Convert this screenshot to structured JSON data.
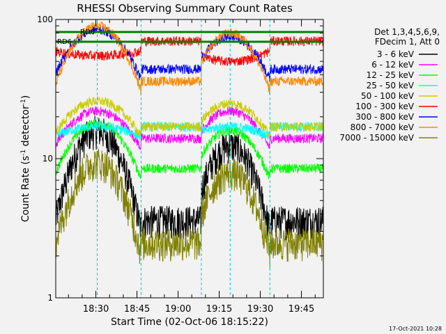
{
  "chart_data": {
    "type": "line",
    "title": "RHESSI Observing Summary Count Rates",
    "xlabel": "Start Time (02-Oct-06 18:15:22)",
    "ylabel": "Count Rate (s⁻¹ detector⁻¹)",
    "ylabel_main": "Count Rate (s",
    "ylabel_sup1": "-1",
    "ylabel_mid": " detector",
    "ylabel_sup2": "-1",
    "ylabel_end": ")",
    "yscale": "log",
    "ylim": [
      1,
      100
    ],
    "xlim": [
      "18:15:22",
      "19:53:00"
    ],
    "x_ticks": [
      "18:30",
      "18:45",
      "19:00",
      "19:15",
      "19:30",
      "19:45"
    ],
    "y_ticks": [
      "1",
      "10",
      "100"
    ],
    "legend_header": [
      "Det 1,3,4,5,6,9,",
      "FDecim 1, Att 0"
    ],
    "legend_position": "right",
    "flags": [
      {
        "label": "RD6",
        "color": "#008000"
      },
      {
        "label": "RD6",
        "color": "#008000"
      }
    ],
    "timestamp": "17-Oct-2021 10:28",
    "day_intervals": [
      [
        "18:15:22",
        "18:46:30"
      ],
      [
        "19:08:30",
        "19:33:30"
      ]
    ],
    "day_peaks": [
      "18:30:30",
      "19:19:00"
    ],
    "series": [
      {
        "name": "3 - 6 keV",
        "color": "#000000",
        "night": 3.6,
        "peak": [
          16,
          12.5
        ]
      },
      {
        "name": "6 - 12 keV",
        "color": "#ff00ff",
        "night": 14,
        "peak": [
          22,
          22
        ]
      },
      {
        "name": "12 - 25 keV",
        "color": "#00ff00",
        "night": 8.5,
        "peak": [
          18,
          16
        ]
      },
      {
        "name": "25 - 50 keV",
        "color": "#00ffff",
        "night": 17,
        "peak": [
          17,
          17
        ]
      },
      {
        "name": "50 - 100 keV",
        "color": "#cccc00",
        "night": 17,
        "peak": [
          26,
          25
        ]
      },
      {
        "name": "100 - 300 keV",
        "color": "#ff0000",
        "night": 70,
        "peak": [
          55,
          50
        ]
      },
      {
        "name": "300 - 800 keV",
        "color": "#0000ff",
        "night": 44,
        "peak": [
          85,
          75
        ]
      },
      {
        "name": "800 - 7000 keV",
        "color": "#ff8800",
        "night": 36,
        "peak": [
          90,
          80
        ]
      },
      {
        "name": "7000 - 15000 keV",
        "color": "#808000",
        "night": 2.5,
        "peak": [
          9.5,
          8
        ]
      }
    ]
  }
}
